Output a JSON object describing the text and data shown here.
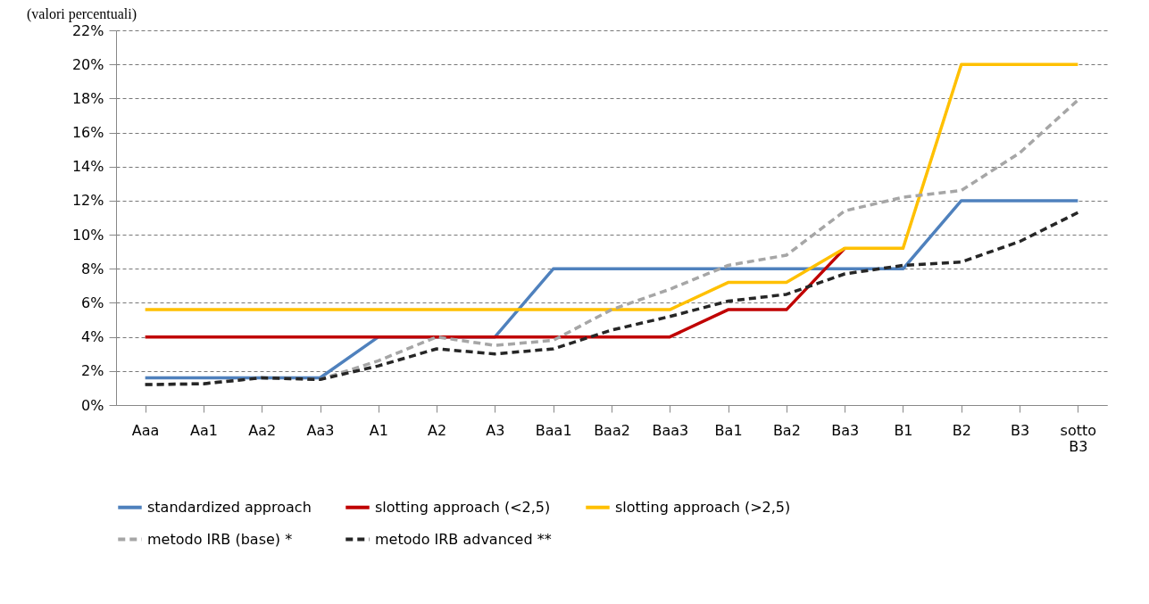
{
  "chart_data": {
    "type": "line",
    "title": "(valori percentuali)",
    "categories": [
      "Aaa",
      "Aa1",
      "Aa2",
      "Aa3",
      "A1",
      "A2",
      "A3",
      "Baa1",
      "Baa2",
      "Baa3",
      "Ba1",
      "Ba2",
      "Ba3",
      "B1",
      "B2",
      "B3",
      "sotto B3"
    ],
    "ylim": [
      0,
      22
    ],
    "yticks": [
      {
        "value": 0,
        "label": "0%"
      },
      {
        "value": 2,
        "label": "2%"
      },
      {
        "value": 4,
        "label": "4%"
      },
      {
        "value": 6,
        "label": "6%"
      },
      {
        "value": 8,
        "label": "8%"
      },
      {
        "value": 10,
        "label": "10%"
      },
      {
        "value": 12,
        "label": "12%"
      },
      {
        "value": 14,
        "label": "14%"
      },
      {
        "value": 16,
        "label": "16%"
      },
      {
        "value": 18,
        "label": "18%"
      },
      {
        "value": 20,
        "label": "20%"
      },
      {
        "value": 22,
        "label": "22%"
      }
    ],
    "grid": "y",
    "legend": "bottom",
    "marker": "none",
    "series": [
      {
        "name": "standardized approach",
        "color": "#4f81bd",
        "line_style": "solid",
        "values": [
          1.6,
          1.6,
          1.6,
          1.6,
          4,
          4,
          4,
          8,
          8,
          8,
          8,
          8,
          8,
          8,
          12,
          12,
          12
        ]
      },
      {
        "name": "slotting approach (<2,5)",
        "color": "#c00000",
        "line_style": "solid",
        "values": [
          4,
          4,
          4,
          4,
          4,
          4,
          4,
          4,
          4,
          4,
          5.6,
          5.6,
          9.2,
          null,
          null,
          null,
          null
        ]
      },
      {
        "name": "slotting approach (>2,5)",
        "color": "#ffc000",
        "line_style": "solid",
        "values": [
          5.6,
          5.6,
          5.6,
          5.6,
          5.6,
          5.6,
          5.6,
          5.6,
          5.6,
          5.6,
          7.2,
          7.2,
          9.2,
          9.2,
          20,
          20,
          20
        ]
      },
      {
        "name": "metodo IRB (base) *",
        "color": "#a6a6a6",
        "line_style": "dashed",
        "values": [
          1.2,
          1.25,
          1.6,
          1.5,
          2.6,
          4,
          3.5,
          3.8,
          5.6,
          6.8,
          8.2,
          8.8,
          11.4,
          12.2,
          12.6,
          14.8,
          17.9
        ]
      },
      {
        "name": "metodo IRB advanced **",
        "color": "#262626",
        "line_style": "dashed",
        "values": [
          1.2,
          1.25,
          1.6,
          1.5,
          2.3,
          3.3,
          3,
          3.3,
          4.4,
          5.2,
          6.1,
          6.5,
          7.7,
          8.2,
          8.4,
          9.6,
          11.3
        ]
      }
    ]
  }
}
